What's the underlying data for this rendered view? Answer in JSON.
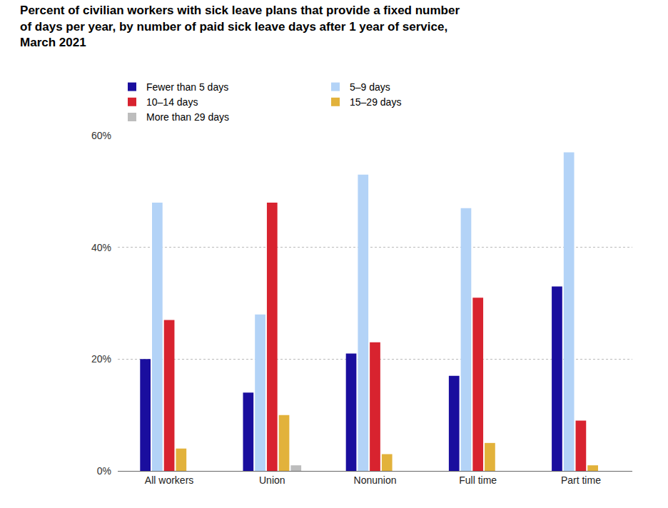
{
  "chart_data": {
    "type": "bar",
    "title": "Percent of civilian workers with sick leave plans that provide a fixed number of days per year, by number of paid sick leave days after 1 year of service, March 2021",
    "categories": [
      "All workers",
      "Union",
      "Nonunion",
      "Full time",
      "Part time"
    ],
    "series": [
      {
        "name": "Fewer than 5 days",
        "color": "#1a0e9e",
        "values": [
          20,
          14,
          21,
          17,
          33
        ]
      },
      {
        "name": "5–9 days",
        "color": "#b3d3f7",
        "values": [
          48,
          28,
          53,
          47,
          57
        ]
      },
      {
        "name": "10–14 days",
        "color": "#d8232f",
        "values": [
          27,
          48,
          23,
          31,
          9
        ]
      },
      {
        "name": "15–29 days",
        "color": "#e2b23b",
        "values": [
          4,
          10,
          3,
          5,
          1
        ]
      },
      {
        "name": "More than 29 days",
        "color": "#bdbdbd",
        "values": [
          0,
          1,
          0,
          0,
          0
        ]
      }
    ],
    "ylim": [
      0,
      60
    ],
    "yticks": [
      {
        "value": 0,
        "label": "0%"
      },
      {
        "value": 20,
        "label": "20%"
      },
      {
        "value": 40,
        "label": "40%"
      },
      {
        "value": 60,
        "label": "60%"
      }
    ],
    "grid": true,
    "legend": "top"
  }
}
